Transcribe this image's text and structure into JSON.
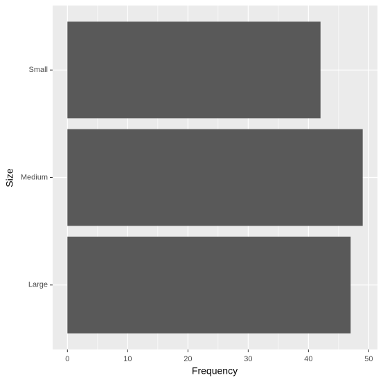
{
  "chart_data": {
    "type": "barh",
    "x_label": "Frequency",
    "y_label": "Size",
    "categories": [
      "Large",
      "Medium",
      "Small"
    ],
    "values": [
      47,
      49,
      42
    ],
    "color": "#595959",
    "xlim": [
      -2.45,
      51.45
    ],
    "xticks": [
      0,
      10,
      20,
      30,
      40,
      50
    ],
    "grid": true,
    "panel_color": "#ebebeb"
  }
}
